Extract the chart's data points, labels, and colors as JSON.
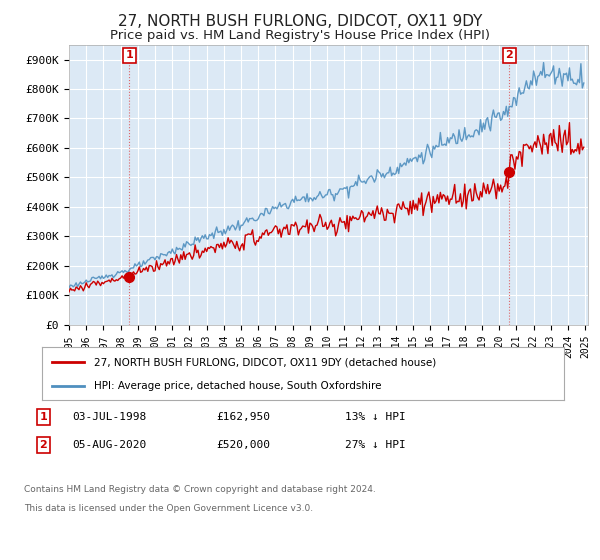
{
  "title": "27, NORTH BUSH FURLONG, DIDCOT, OX11 9DY",
  "subtitle": "Price paid vs. HM Land Registry's House Price Index (HPI)",
  "title_fontsize": 11,
  "subtitle_fontsize": 9.5,
  "background_color": "#ffffff",
  "plot_bg_color": "#dce9f5",
  "grid_color": "#ffffff",
  "purchase1_price": 162950,
  "purchase2_price": 520000,
  "purchase1_date_str": "03-JUL-1998",
  "purchase2_date_str": "05-AUG-2020",
  "purchase1_pct": "13% ↓ HPI",
  "purchase2_pct": "27% ↓ HPI",
  "legend1": "27, NORTH BUSH FURLONG, DIDCOT, OX11 9DY (detached house)",
  "legend2": "HPI: Average price, detached house, South Oxfordshire",
  "footer1": "Contains HM Land Registry data © Crown copyright and database right 2024.",
  "footer2": "This data is licensed under the Open Government Licence v3.0.",
  "property_line_color": "#cc0000",
  "hpi_line_color": "#4f8fbf",
  "marker_color": "#cc0000",
  "box_color": "#cc0000",
  "vline_color": "#dd4444",
  "ylim": [
    0,
    950000
  ],
  "yticks": [
    0,
    100000,
    200000,
    300000,
    400000,
    500000,
    600000,
    700000,
    800000,
    900000
  ],
  "ytick_labels": [
    "£0",
    "£100K",
    "£200K",
    "£300K",
    "£400K",
    "£500K",
    "£600K",
    "£700K",
    "£800K",
    "£900K"
  ],
  "xstart_year": 1995,
  "xend_year": 2025
}
